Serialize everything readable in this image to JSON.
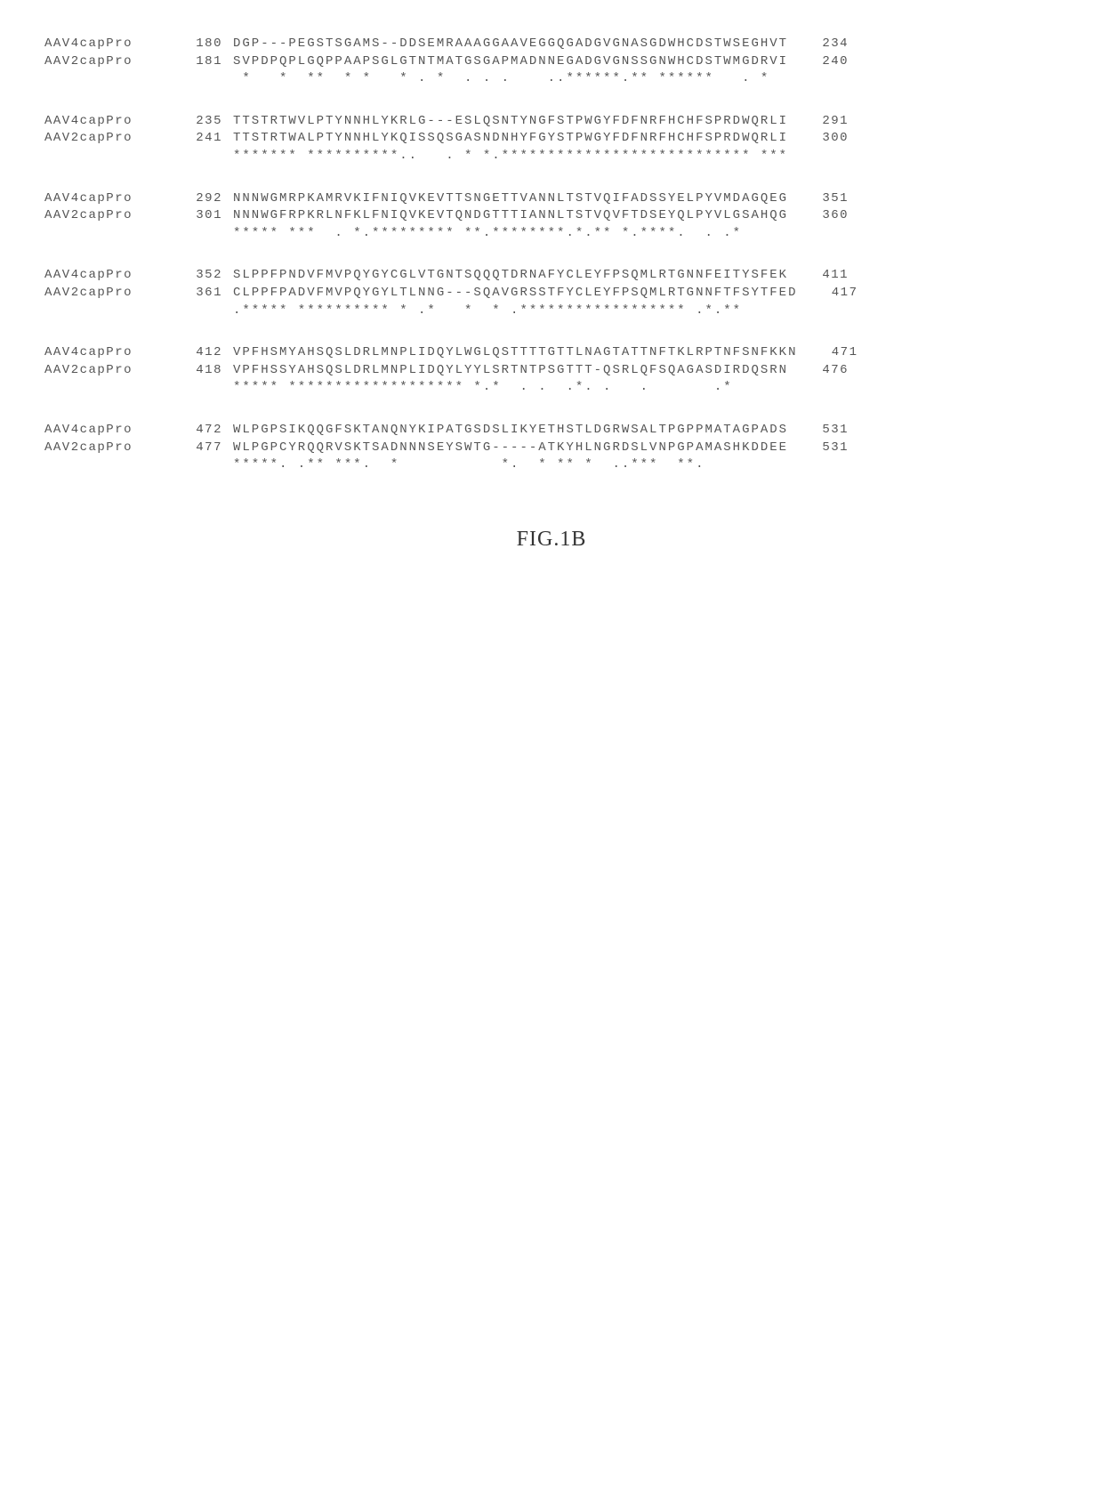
{
  "caption": "FIG.1B",
  "labels": {
    "seqA": "AAV4capPro",
    "seqB": "AAV2capPro"
  },
  "blocks": [
    {
      "a_start": 180,
      "a_end": 234,
      "a_seq": "DGP---PEGSTSGAMS--DDSEMRAAAGGAAVEGGQGADGVGNASGDWHCDSTWSEGHVT",
      "b_start": 181,
      "b_end": 240,
      "b_seq": "SVPDPQPLGQPPAAPSGLGTNTMATGSGAPMADNNEGADGVGNSSGNWHCDSTWMGDRVI",
      "cons": " *   *  **  * *   * . *  . . .    ..******.** ******   . * "
    },
    {
      "a_start": 235,
      "a_end": 291,
      "a_seq": "TTSTRTWVLPTYNNHLYKRLG---ESLQSNTYNGFSTPWGYFDFNRFHCHFSPRDWQRLI",
      "b_start": 241,
      "b_end": 300,
      "b_seq": "TTSTRTWALPTYNNHLYKQISSQSGASNDNHYFGYSTPWGYFDFNRFHCHFSPRDWQRLI",
      "cons": "******* **********..   . * *.*************************** ***"
    },
    {
      "a_start": 292,
      "a_end": 351,
      "a_seq": "NNNWGMRPKAMRVKIFNIQVKEVTTSNGETTVANNLTSTVQIFADSSYELPYVMDAGQEG",
      "b_start": 301,
      "b_end": 360,
      "b_seq": "NNNWGFRPKRLNFKLFNIQVKEVTQNDGTTTIANNLTSTVQVFTDSEYQLPYVLGSAHQG",
      "cons": "***** ***  . *.********* **.********.*.** *.****.  . .*"
    },
    {
      "a_start": 352,
      "a_end": 411,
      "a_seq": "SLPPFPNDVFMVPQYGYCGLVTGNTSQQQTDRNAFYCLEYFPSQMLRTGNNFEITYSFEK",
      "b_start": 361,
      "b_end": 417,
      "b_seq": "CLPPFPADVFMVPQYGYLTLNNG---SQAVGRSSTFYCLEYFPSQMLRTGNNFTFSYTFED",
      "cons": ".***** ********** * .*   *  * .****************** .*.**"
    },
    {
      "a_start": 412,
      "a_end": 471,
      "a_seq": "VPFHSMYAHSQSLDRLMNPLIDQYLWGLQSTTTTGTTLNAGTATTNFTKLRPTNFSNFKKN",
      "b_start": 418,
      "b_end": 476,
      "b_seq": "VPFHSSYAHSQSLDRLMNPLIDQYLYYLSRTNTPSGTTT-QSRLQFSQAGASDIRDQSRN",
      "cons": "***** ******************* *.*  . .  .*. .   .       .*"
    },
    {
      "a_start": 472,
      "a_end": 531,
      "a_seq": "WLPGPSIKQQGFSKTANQNYKIPATGSDSLIKYETHSTLDGRWSALTPGPPMATAGPADS",
      "b_start": 477,
      "b_end": 531,
      "b_seq": "WLPGPCYRQQRVSKTSADNNNSEYSWTG-----ATKYHLNGRDSLVNPGPAMASHKDDEE",
      "cons": "*****. .** ***.  *           *.  * ** *  ..***  **. "
    }
  ]
}
